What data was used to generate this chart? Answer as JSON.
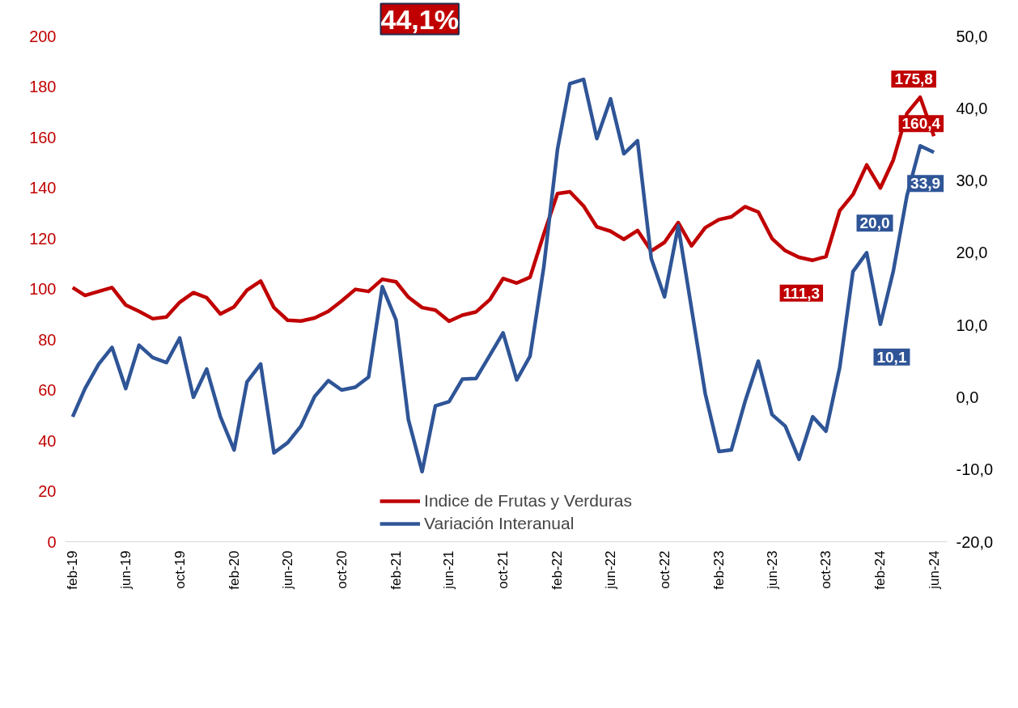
{
  "chart_data": {
    "type": "line",
    "annotations": [
      "44,1%"
    ],
    "x": [
      "2019-02",
      "2019-03",
      "2019-04",
      "2019-05",
      "2019-06",
      "2019-07",
      "2019-08",
      "2019-09",
      "2019-10",
      "2019-11",
      "2019-12",
      "2020-01",
      "2020-02",
      "2020-03",
      "2020-04",
      "2020-05",
      "2020-06",
      "2020-07",
      "2020-08",
      "2020-09",
      "2020-10",
      "2020-11",
      "2020-12",
      "2021-01",
      "2021-02",
      "2021-03",
      "2021-04",
      "2021-05",
      "2021-06",
      "2021-07",
      "2021-08",
      "2021-09",
      "2021-10",
      "2021-11",
      "2021-12",
      "2022-01",
      "2022-02",
      "2022-03",
      "2022-04",
      "2022-05",
      "2022-06",
      "2022-07",
      "2022-08",
      "2022-09",
      "2022-10",
      "2022-11",
      "2022-12",
      "2023-01",
      "2023-02",
      "2023-03",
      "2023-04",
      "2023-05",
      "2023-06",
      "2023-07",
      "2023-08",
      "2023-09",
      "2023-10",
      "2023-11",
      "2023-12",
      "2024-01",
      "2024-02",
      "2024-03",
      "2024-04",
      "2024-05",
      "2024-06"
    ],
    "series": [
      {
        "name": "Indice de Frutas y Verduras",
        "color": "#c00000",
        "values": [
          100.5,
          97.4,
          99.0,
          100.5,
          93.6,
          91.1,
          88.2,
          88.9,
          94.7,
          98.5,
          96.5,
          90.1,
          92.9,
          99.5,
          103.1,
          92.6,
          87.6,
          87.3,
          88.5,
          91.1,
          95.2,
          99.8,
          99.0,
          103.8,
          102.8,
          96.7,
          92.6,
          91.6,
          87.2,
          89.6,
          90.9,
          95.7,
          104.1,
          102.3,
          104.6,
          121.6,
          137.7,
          138.4,
          132.8,
          124.5,
          122.8,
          119.6,
          123.1,
          115.0,
          118.4,
          126.2,
          117.0,
          124.2,
          127.4,
          128.5,
          132.5,
          130.4,
          119.9,
          115.1,
          112.5,
          111.3,
          112.8,
          130.9,
          137.3,
          149.0,
          139.9,
          150.9,
          169.4,
          175.8,
          160.4
        ],
        "value_labels": [
          null,
          null,
          null,
          null,
          null,
          null,
          null,
          null,
          null,
          null,
          null,
          null,
          null,
          null,
          null,
          null,
          null,
          null,
          null,
          null,
          null,
          null,
          null,
          null,
          null,
          null,
          null,
          null,
          null,
          null,
          null,
          null,
          null,
          null,
          null,
          null,
          null,
          null,
          null,
          null,
          null,
          null,
          null,
          null,
          null,
          null,
          null,
          null,
          null,
          null,
          null,
          null,
          null,
          null,
          null,
          "111,3",
          null,
          null,
          null,
          null,
          null,
          null,
          null,
          "175,8",
          "160,4"
        ]
      },
      {
        "name": "Variación Interanual",
        "color": "#2f5597",
        "axis": "y2",
        "values": [
          -2.7,
          1.2,
          4.6,
          6.9,
          1.2,
          7.2,
          5.5,
          4.8,
          8.2,
          0.0,
          3.9,
          -2.7,
          -7.3,
          2.1,
          4.6,
          -7.7,
          -6.3,
          -4.0,
          0.1,
          2.3,
          1.0,
          1.4,
          2.8,
          15.3,
          10.7,
          -3.1,
          -10.3,
          -1.2,
          -0.6,
          2.5,
          2.6,
          5.8,
          8.9,
          2.4,
          5.7,
          18.0,
          34.3,
          43.4,
          44.0,
          35.8,
          41.3,
          33.7,
          35.5,
          19.2,
          13.9,
          23.7,
          12.3,
          0.5,
          -7.5,
          -7.3,
          -0.6,
          5.0,
          -2.4,
          -4.0,
          -8.6,
          -2.7,
          -4.7,
          4.1,
          17.4,
          20.0,
          10.1,
          17.4,
          27.9,
          34.8,
          33.9
        ],
        "value_labels": [
          null,
          null,
          null,
          null,
          null,
          null,
          null,
          null,
          null,
          null,
          null,
          null,
          null,
          null,
          null,
          null,
          null,
          null,
          null,
          null,
          null,
          null,
          null,
          null,
          null,
          null,
          null,
          null,
          null,
          null,
          null,
          null,
          null,
          null,
          null,
          null,
          null,
          null,
          null,
          null,
          null,
          null,
          null,
          null,
          null,
          null,
          null,
          null,
          null,
          null,
          null,
          null,
          null,
          null,
          null,
          null,
          null,
          null,
          null,
          "20,0",
          "10,1",
          null,
          null,
          null,
          "33,9"
        ]
      }
    ],
    "xlim": [
      "2019-01-15",
      "2024-07-01"
    ],
    "xticks": [
      {
        "value": "2019-02",
        "label": "feb-19"
      },
      {
        "value": "2019-06",
        "label": "jun-19"
      },
      {
        "value": "2019-10",
        "label": "oct-19"
      },
      {
        "value": "2020-02",
        "label": "feb-20"
      },
      {
        "value": "2020-06",
        "label": "jun-20"
      },
      {
        "value": "2020-10",
        "label": "oct-20"
      },
      {
        "value": "2021-02",
        "label": "feb-21"
      },
      {
        "value": "2021-06",
        "label": "jun-21"
      },
      {
        "value": "2021-10",
        "label": "oct-21"
      },
      {
        "value": "2022-02",
        "label": "feb-22"
      },
      {
        "value": "2022-06",
        "label": "jun-22"
      },
      {
        "value": "2022-10",
        "label": "oct-22"
      },
      {
        "value": "2023-02",
        "label": "feb-23"
      },
      {
        "value": "2023-06",
        "label": "jun-23"
      },
      {
        "value": "2023-10",
        "label": "oct-23"
      },
      {
        "value": "2024-02",
        "label": "feb-24"
      },
      {
        "value": "2024-06",
        "label": "jun-24"
      }
    ],
    "ylim": [
      0,
      200
    ],
    "yticks": [
      0,
      20,
      40,
      60,
      80,
      100,
      120,
      140,
      160,
      180,
      200
    ],
    "y2lim": [
      -20,
      50
    ],
    "y2ticks": [
      {
        "value": -20,
        "label": "-20,0"
      },
      {
        "value": -10,
        "label": "-10,0"
      },
      {
        "value": 0,
        "label": "0,0"
      },
      {
        "value": 10,
        "label": "10,0"
      },
      {
        "value": 20,
        "label": "20,0"
      },
      {
        "value": 30,
        "label": "30,0"
      },
      {
        "value": 40,
        "label": "40,0"
      },
      {
        "value": 50,
        "label": "50,0"
      }
    ],
    "grid": false,
    "legend": "bottom",
    "marker": "none",
    "line_style": "solid"
  }
}
